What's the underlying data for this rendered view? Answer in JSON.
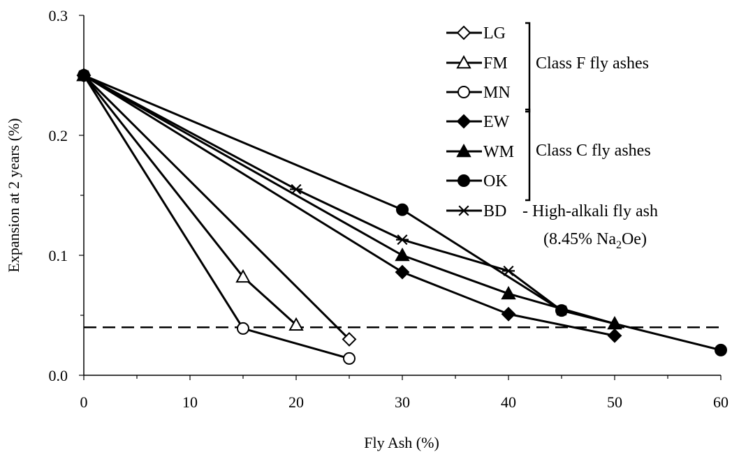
{
  "chart_data": {
    "type": "line",
    "xlabel": "Fly Ash (%)",
    "ylabel": "Expansion at 2 years (%)",
    "xlim": [
      0,
      60
    ],
    "ylim": [
      0.0,
      0.3
    ],
    "xticks": [
      "0",
      "10",
      "20",
      "30",
      "40",
      "50",
      "60"
    ],
    "yticks": [
      "0.0",
      "0.1",
      "0.2",
      "0.3"
    ],
    "grid": false,
    "legend_position": "top-right",
    "reference_line": {
      "y": 0.04,
      "style": "dashed"
    },
    "series": [
      {
        "name": "LG",
        "marker": "diamond-open",
        "points": [
          [
            0,
            0.25
          ],
          [
            25,
            0.03
          ]
        ]
      },
      {
        "name": "FM",
        "marker": "triangle-open",
        "points": [
          [
            0,
            0.25
          ],
          [
            15,
            0.082
          ],
          [
            20,
            0.042
          ]
        ]
      },
      {
        "name": "MN",
        "marker": "circle-open",
        "points": [
          [
            0,
            0.25
          ],
          [
            15,
            0.039
          ],
          [
            25,
            0.014
          ]
        ]
      },
      {
        "name": "EW",
        "marker": "diamond-filled",
        "points": [
          [
            0,
            0.25
          ],
          [
            30,
            0.086
          ],
          [
            40,
            0.051
          ],
          [
            50,
            0.033
          ]
        ]
      },
      {
        "name": "WM",
        "marker": "triangle-filled",
        "points": [
          [
            0,
            0.25
          ],
          [
            30,
            0.1
          ],
          [
            40,
            0.068
          ],
          [
            50,
            0.043
          ]
        ]
      },
      {
        "name": "OK",
        "marker": "circle-filled",
        "points": [
          [
            0,
            0.25
          ],
          [
            30,
            0.138
          ],
          [
            45,
            0.054
          ],
          [
            60,
            0.021
          ]
        ]
      },
      {
        "name": "BD",
        "marker": "asterisk",
        "points": [
          [
            0,
            0.25
          ],
          [
            20,
            0.155
          ],
          [
            30,
            0.113
          ],
          [
            40,
            0.087
          ],
          [
            45,
            0.054
          ]
        ]
      }
    ],
    "legend_groups": [
      {
        "label": "Class F fly ashes",
        "members": [
          "LG",
          "FM",
          "MN"
        ]
      },
      {
        "label": "Class C fly ashes",
        "members": [
          "EW",
          "WM",
          "OK"
        ]
      },
      {
        "label": "- High-alkali fly ash",
        "sublabel_prefix": "(8.45% Na",
        "sublabel_sub": "2",
        "sublabel_suffix": "Oe)",
        "members": [
          "BD"
        ]
      }
    ]
  }
}
